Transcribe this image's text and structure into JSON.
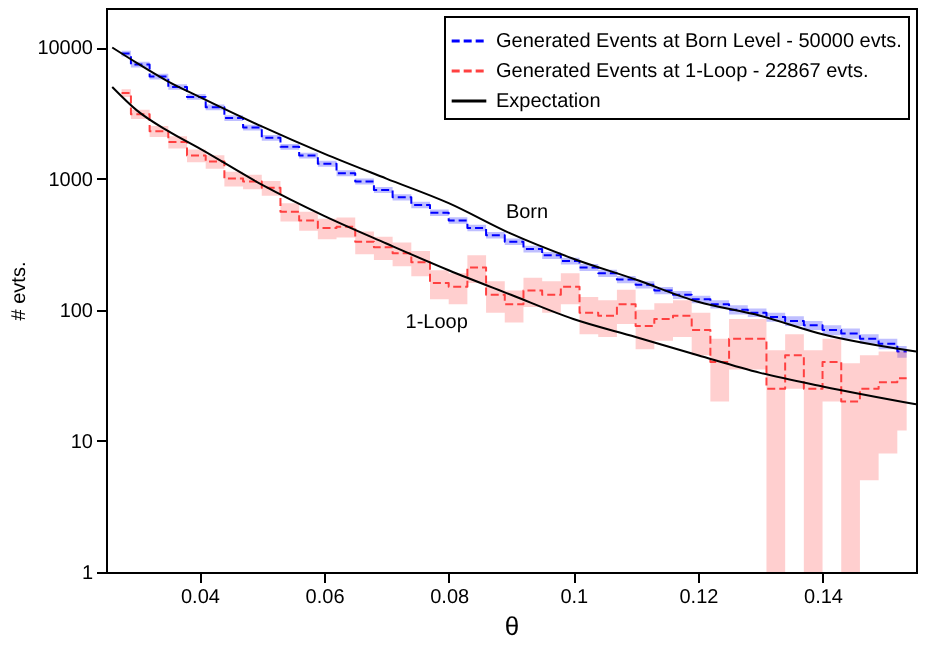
{
  "chart_data": {
    "type": "step",
    "xlabel": "θ",
    "ylabel": "# evts.",
    "xlim": [
      0.025,
      0.155
    ],
    "xticks": [
      0.04,
      0.06,
      0.08,
      0.1,
      0.12,
      0.14
    ],
    "ylim": [
      1,
      20000
    ],
    "yticks": [
      1,
      10,
      100,
      1000,
      10000
    ],
    "log": "y",
    "grid": false,
    "legend": "top right",
    "x": [
      0.0275,
      0.0305,
      0.0335,
      0.0365,
      0.0395,
      0.0425,
      0.0455,
      0.0485,
      0.0515,
      0.0545,
      0.0575,
      0.0605,
      0.0635,
      0.0665,
      0.0695,
      0.0725,
      0.0755,
      0.0785,
      0.0815,
      0.0845,
      0.0875,
      0.0905,
      0.0935,
      0.0965,
      0.0995,
      0.1025,
      0.1055,
      0.1085,
      0.1115,
      0.1145,
      0.1175,
      0.1205,
      0.1235,
      0.1265,
      0.1295,
      0.1325,
      0.1355,
      0.1385,
      0.1415,
      0.1445,
      0.1475,
      0.1505,
      0.1535
    ],
    "series": [
      {
        "name": "Generated Events at Born Level - 50000 evts.",
        "color": "#0000ff",
        "line_style": "dashed",
        "values": [
          9000,
          7400,
          6000,
          5000,
          4200,
          3500,
          2900,
          2450,
          2050,
          1750,
          1500,
          1300,
          1100,
          950,
          820,
          720,
          630,
          550,
          480,
          420,
          370,
          330,
          290,
          260,
          235,
          210,
          190,
          170,
          155,
          140,
          130,
          120,
          110,
          100,
          95,
          88,
          82,
          76,
          70,
          66,
          60,
          55,
          48
        ],
        "lower": [
          8550,
          7030,
          5700,
          4750,
          3990,
          3325,
          2755,
          2325,
          1945,
          1660,
          1422,
          1232,
          1042,
          900,
          776,
          681,
          595,
          519,
          453,
          396,
          349,
          311,
          273,
          244,
          221,
          197,
          178,
          159,
          145,
          131,
          121,
          112,
          102,
          92,
          88,
          81,
          75,
          70,
          64,
          60,
          55,
          50,
          43
        ],
        "upper": [
          9450,
          7770,
          6300,
          5250,
          4410,
          3675,
          3045,
          2575,
          2155,
          1840,
          1578,
          1368,
          1158,
          1000,
          864,
          759,
          665,
          581,
          507,
          444,
          391,
          349,
          307,
          276,
          249,
          223,
          202,
          181,
          165,
          149,
          139,
          128,
          118,
          108,
          102,
          95,
          89,
          82,
          76,
          72,
          65,
          60,
          53
        ]
      },
      {
        "name": "Generated Events at 1-Loop - 22867 evts.",
        "color": "#ff4040",
        "line_style": "dashed",
        "values": [
          4500,
          3100,
          2300,
          1900,
          1500,
          1350,
          1000,
          950,
          850,
          560,
          480,
          420,
          430,
          330,
          300,
          270,
          230,
          160,
          150,
          210,
          130,
          110,
          140,
          130,
          150,
          95,
          90,
          110,
          75,
          85,
          90,
          70,
          40,
          60,
          60,
          25,
          45,
          25,
          40,
          20,
          25,
          28,
          30
        ],
        "lower": [
          4200,
          2850,
          2080,
          1700,
          1330,
          1190,
          870,
          830,
          740,
          470,
          400,
          345,
          355,
          265,
          240,
          215,
          180,
          120,
          110,
          160,
          95,
          80,
          105,
          95,
          110,
          65,
          62,
          78,
          50,
          58,
          62,
          45,
          20,
          35,
          35,
          1,
          25,
          1,
          20,
          1,
          5,
          8,
          12
        ],
        "upper": [
          4800,
          3350,
          2520,
          2100,
          1670,
          1510,
          1130,
          1070,
          960,
          650,
          560,
          495,
          505,
          395,
          360,
          325,
          280,
          200,
          190,
          260,
          165,
          140,
          175,
          165,
          190,
          125,
          118,
          142,
          100,
          112,
          118,
          95,
          60,
          85,
          85,
          49,
          65,
          49,
          60,
          39,
          45,
          48,
          48
        ]
      },
      {
        "type": "line",
        "name": "Expectation",
        "color": "#000000",
        "line_style": "solid",
        "x": [
          0.026,
          0.03,
          0.035,
          0.04,
          0.05,
          0.06,
          0.07,
          0.08,
          0.09,
          0.1,
          0.11,
          0.12,
          0.13,
          0.14,
          0.155
        ],
        "values": [
          10000,
          7600,
          5500,
          4200,
          2500,
          1550,
          1000,
          650,
          380,
          245,
          170,
          115,
          90,
          65,
          48
        ]
      },
      {
        "type": "line",
        "color": "#000000",
        "line_style": "solid",
        "x": [
          0.026,
          0.03,
          0.035,
          0.04,
          0.05,
          0.06,
          0.07,
          0.08,
          0.09,
          0.1,
          0.11,
          0.12,
          0.13,
          0.14,
          0.155
        ],
        "values": [
          5000,
          3300,
          2300,
          1700,
          900,
          520,
          320,
          200,
          130,
          85,
          62,
          45,
          33,
          26,
          19
        ]
      }
    ],
    "annotations": [
      {
        "text": "Born",
        "x": 0.09,
        "y": 380
      },
      {
        "text": "1-Loop",
        "x": 0.08,
        "y": 200
      }
    ]
  }
}
